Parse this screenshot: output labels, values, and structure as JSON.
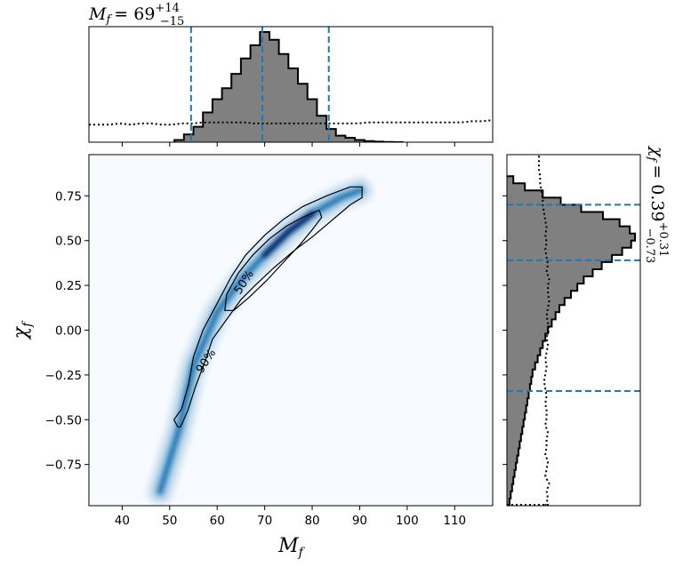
{
  "chart_data": [
    {
      "panel": "joint",
      "type": "heatmap",
      "xlabel": "M",
      "xlabel_sub": "f",
      "ylabel": "χ",
      "ylabel_sub": "f",
      "xlim": [
        33,
        118
      ],
      "ylim": [
        -0.98,
        0.98
      ],
      "xticks": [
        40,
        50,
        60,
        70,
        80,
        90,
        100,
        110
      ],
      "yticks": [
        -0.75,
        -0.5,
        -0.25,
        0.0,
        0.25,
        0.5,
        0.75
      ],
      "ytick_labels": [
        "−0.75",
        "−0.50",
        "−0.25",
        "0.00",
        "0.25",
        "0.50",
        "0.75"
      ],
      "colormap": [
        "#f7fbff",
        "#deebf7",
        "#c6dbef",
        "#9ecae1",
        "#6baed6",
        "#4292c6",
        "#2171b5",
        "#08519c",
        "#08306b"
      ],
      "ridge": [
        {
          "m": 48,
          "chi": -0.9
        },
        {
          "m": 52,
          "chi": -0.55
        },
        {
          "m": 55,
          "chi": -0.2
        },
        {
          "m": 60,
          "chi": 0.1
        },
        {
          "m": 65,
          "chi": 0.28
        },
        {
          "m": 70,
          "chi": 0.42
        },
        {
          "m": 75,
          "chi": 0.55
        },
        {
          "m": 80,
          "chi": 0.65
        },
        {
          "m": 86,
          "chi": 0.74
        },
        {
          "m": 90,
          "chi": 0.78
        }
      ],
      "contours": [
        {
          "label": "90%",
          "label_at": {
            "m": 57.5,
            "chi": -0.17
          },
          "points": [
            [
              51.7,
              -0.54
            ],
            [
              50.9,
              -0.5
            ],
            [
              52.5,
              -0.44
            ],
            [
              54,
              -0.3
            ],
            [
              55,
              -0.15
            ],
            [
              57,
              0
            ],
            [
              60,
              0.15
            ],
            [
              63,
              0.3
            ],
            [
              66,
              0.42
            ],
            [
              70,
              0.53
            ],
            [
              74,
              0.62
            ],
            [
              78,
              0.69
            ],
            [
              83,
              0.75
            ],
            [
              88,
              0.8
            ],
            [
              90.5,
              0.8
            ],
            [
              90.5,
              0.74
            ],
            [
              88,
              0.7
            ],
            [
              84,
              0.61
            ],
            [
              80,
              0.52
            ],
            [
              76,
              0.44
            ],
            [
              72,
              0.35
            ],
            [
              68,
              0.25
            ],
            [
              65,
              0.17
            ],
            [
              62,
              0.06
            ],
            [
              59,
              -0.05
            ],
            [
              57.5,
              -0.17
            ],
            [
              55.5,
              -0.31
            ],
            [
              53.8,
              -0.45
            ],
            [
              52.3,
              -0.54
            ]
          ]
        },
        {
          "label": "50%",
          "label_at": {
            "m": 65.5,
            "chi": 0.27
          },
          "points": [
            [
              61.6,
              0.11
            ],
            [
              62,
              0.2
            ],
            [
              64.5,
              0.32
            ],
            [
              67.5,
              0.42
            ],
            [
              71,
              0.51
            ],
            [
              74.5,
              0.58
            ],
            [
              78,
              0.63
            ],
            [
              81.5,
              0.67
            ],
            [
              82,
              0.63
            ],
            [
              80,
              0.56
            ],
            [
              77.5,
              0.48
            ],
            [
              74,
              0.38
            ],
            [
              70.5,
              0.28
            ],
            [
              67,
              0.19
            ],
            [
              63.5,
              0.11
            ]
          ]
        }
      ]
    },
    {
      "panel": "top-marginal",
      "type": "histogram",
      "title_symbol": "M",
      "title_sub": "f",
      "title_value": "= 69",
      "title_plus": "+14",
      "title_minus": "−15",
      "bin_edges": [
        51,
        53,
        55,
        57,
        59,
        61,
        63,
        65,
        67,
        69,
        71,
        73,
        75,
        77,
        79,
        81,
        83,
        85,
        87,
        89,
        91,
        93,
        95,
        97,
        99
      ],
      "counts": [
        0.02,
        0.07,
        0.14,
        0.27,
        0.39,
        0.49,
        0.62,
        0.76,
        0.88,
        1.0,
        0.93,
        0.8,
        0.67,
        0.53,
        0.39,
        0.24,
        0.12,
        0.06,
        0.04,
        0.02,
        0.01,
        0.005,
        0.002,
        0.001
      ],
      "prior_dotted": [
        0.16,
        0.16,
        0.16,
        0.17,
        0.16,
        0.17,
        0.17,
        0.16,
        0.16,
        0.17,
        0.17,
        0.18,
        0.18,
        0.18,
        0.18,
        0.18,
        0.17,
        0.17,
        0.17,
        0.17,
        0.17,
        0.17,
        0.17,
        0.17,
        0.17,
        0.17,
        0.17,
        0.18,
        0.18,
        0.18,
        0.18,
        0.18,
        0.18,
        0.18,
        0.18,
        0.18,
        0.18,
        0.19,
        0.19,
        0.2
      ],
      "quantiles": [
        54.5,
        69.5,
        83.5
      ],
      "fill_color": "#808080",
      "line_color": "#1f77b4"
    },
    {
      "panel": "right-marginal",
      "type": "histogram",
      "orientation": "horizontal",
      "title_symbol": "χ",
      "title_sub": "f",
      "title_value": "= 0.39",
      "title_plus": "+0.31",
      "title_minus": "−0.73",
      "bin_edges": [
        -0.98,
        -0.94,
        -0.9,
        -0.86,
        -0.82,
        -0.78,
        -0.74,
        -0.7,
        -0.66,
        -0.62,
        -0.58,
        -0.54,
        -0.5,
        -0.46,
        -0.42,
        -0.38,
        -0.34,
        -0.3,
        -0.26,
        -0.22,
        -0.18,
        -0.14,
        -0.1,
        -0.06,
        -0.02,
        0.02,
        0.06,
        0.1,
        0.14,
        0.18,
        0.22,
        0.26,
        0.3,
        0.34,
        0.38,
        0.42,
        0.46,
        0.5,
        0.54,
        0.58,
        0.62,
        0.66,
        0.7,
        0.74,
        0.78,
        0.82,
        0.86
      ],
      "counts": [
        0.02,
        0.03,
        0.04,
        0.05,
        0.06,
        0.07,
        0.08,
        0.09,
        0.1,
        0.11,
        0.12,
        0.13,
        0.14,
        0.15,
        0.16,
        0.17,
        0.18,
        0.19,
        0.2,
        0.22,
        0.24,
        0.26,
        0.28,
        0.3,
        0.32,
        0.35,
        0.38,
        0.41,
        0.45,
        0.5,
        0.55,
        0.6,
        0.67,
        0.74,
        0.82,
        0.9,
        0.97,
        1.0,
        0.96,
        0.88,
        0.75,
        0.58,
        0.42,
        0.28,
        0.14,
        0.05
      ],
      "prior_dotted": [
        0.3,
        0.32,
        0.31,
        0.33,
        0.3,
        0.31,
        0.32,
        0.3,
        0.31,
        0.31,
        0.32,
        0.3,
        0.31,
        0.31,
        0.3,
        0.31,
        0.3,
        0.29,
        0.3,
        0.31,
        0.3,
        0.31,
        0.32,
        0.31,
        0.33,
        0.32,
        0.31,
        0.32,
        0.33,
        0.32,
        0.32,
        0.33,
        0.31,
        0.32,
        0.31,
        0.3,
        0.31,
        0.3,
        0.31,
        0.3,
        0.29,
        0.28,
        0.28,
        0.27,
        0.26,
        0.26,
        0.25,
        0.25,
        0.25
      ],
      "quantiles": [
        -0.34,
        0.39,
        0.7
      ],
      "fill_color": "#808080",
      "line_color": "#1f77b4"
    }
  ]
}
